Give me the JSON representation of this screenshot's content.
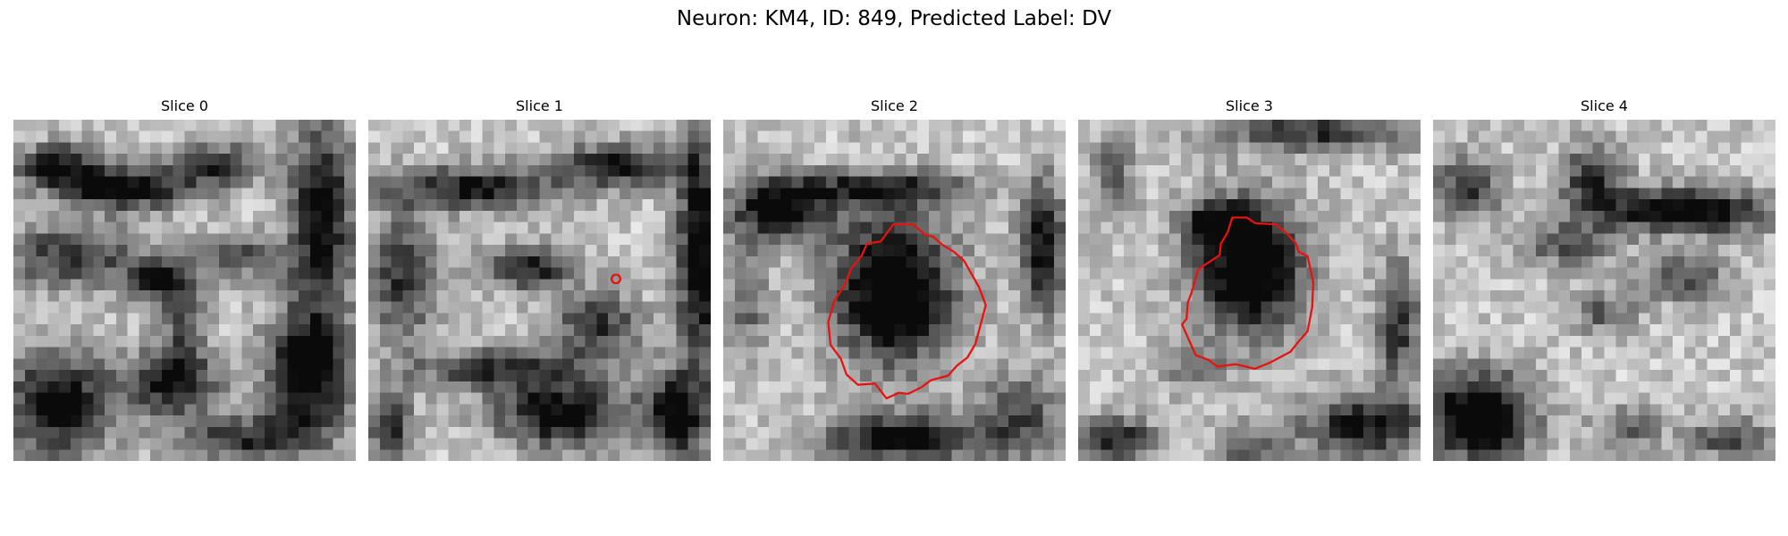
{
  "figure": {
    "title": "Neuron: KM4, ID: 849, Predicted Label: DV"
  },
  "contour_color": "#e8120f",
  "panels": [
    {
      "title": "Slice 0",
      "contour": "none",
      "seed": 11,
      "pattern": "s0"
    },
    {
      "title": "Slice 1",
      "contour": "marker",
      "seed": 23,
      "pattern": "s1"
    },
    {
      "title": "Slice 2",
      "contour": "large-blob",
      "seed": 37,
      "pattern": "s2"
    },
    {
      "title": "Slice 3",
      "contour": "irregular-blob",
      "seed": 51,
      "pattern": "s3"
    },
    {
      "title": "Slice 4",
      "contour": "none",
      "seed": 67,
      "pattern": "s4"
    }
  ]
}
